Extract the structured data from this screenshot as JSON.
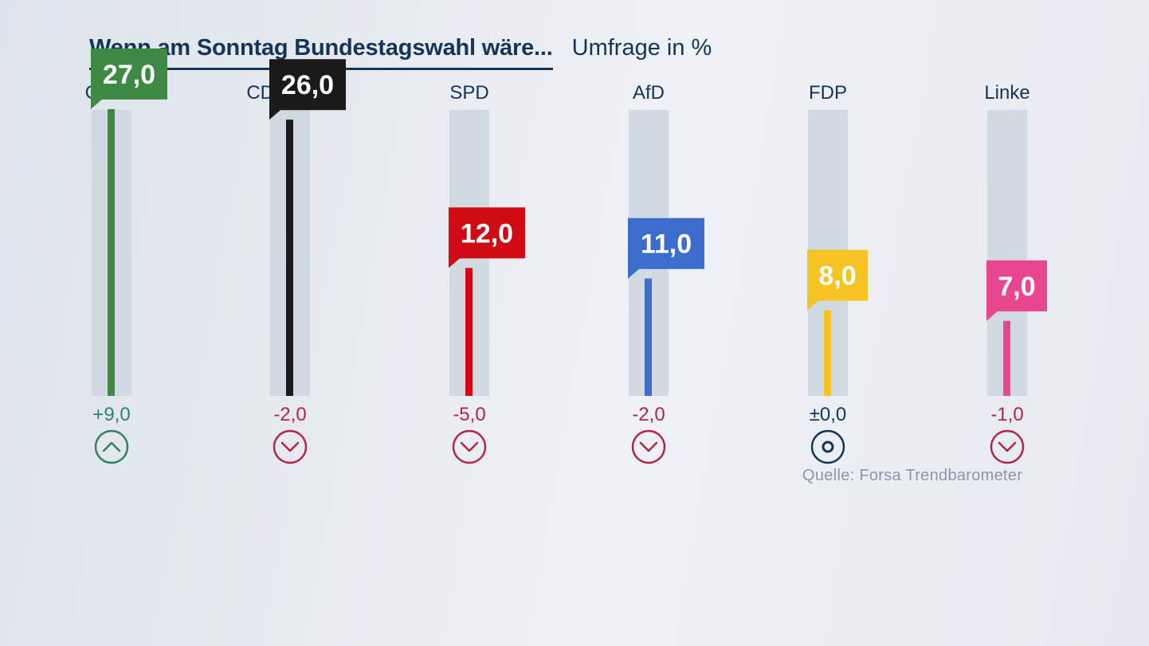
{
  "header": {
    "title": "Wenn am Sonntag Bundestagswahl wäre...",
    "subtitle": "Umfrage in %"
  },
  "source": "Quelle: Forsa Trendbarometer",
  "chart_data": {
    "type": "bar",
    "title": "Wenn am Sonntag Bundestagswahl wäre...",
    "subtitle": "Umfrage in %",
    "ylim": [
      0,
      30
    ],
    "categories": [
      "Grüne",
      "CDU/CSU",
      "SPD",
      "AfD",
      "FDP",
      "Linke"
    ],
    "values": [
      27.0,
      26.0,
      12.0,
      11.0,
      8.0,
      7.0
    ],
    "value_labels": [
      "27,0",
      "26,0",
      "12,0",
      "11,0",
      "8,0",
      "7,0"
    ],
    "changes": [
      9.0,
      -2.0,
      -5.0,
      -2.0,
      0.0,
      -1.0
    ],
    "change_labels": [
      "+9,0",
      "-2,0",
      "-5,0",
      "-2,0",
      "±0,0",
      "-1,0"
    ],
    "trend_icons": [
      "chevron-up-icon",
      "chevron-down-icon",
      "chevron-down-icon",
      "chevron-down-icon",
      "dot-circle-icon",
      "chevron-down-icon"
    ],
    "colors": [
      "#3e8a44",
      "#1a1a1a",
      "#d00b14",
      "#3c6ccc",
      "#f6c324",
      "#e8468f"
    ],
    "change_colors": {
      "up": "#2f8265",
      "down": "#b32545",
      "neutral": "#14345a"
    },
    "grid": false,
    "legend": "none"
  }
}
